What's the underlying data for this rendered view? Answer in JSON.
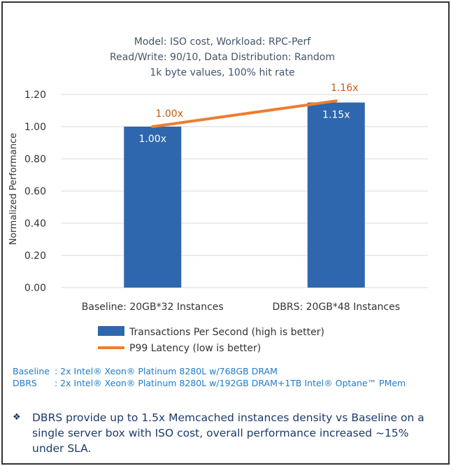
{
  "chart_data": {
    "type": "bar",
    "title_lines": [
      "Model: ISO cost, Workload: RPC-Perf",
      "Read/Write: 90/10, Data Distribution: Random",
      "1k byte values, 100% hit rate"
    ],
    "ylabel": "Normalized Performance",
    "xlabel": "",
    "ylim": [
      0,
      1.2
    ],
    "yticks": [
      "0.00",
      "0.20",
      "0.40",
      "0.60",
      "0.80",
      "1.00",
      "1.20"
    ],
    "grid": true,
    "categories": [
      "Baseline: 20GB*32 Instances",
      "DBRS: 20GB*48 Instances"
    ],
    "series": [
      {
        "name": "Transactions Per Second (high is better)",
        "type": "bar",
        "color": "#2e67ad",
        "values": [
          1.0,
          1.15
        ],
        "labels": [
          "1.00x",
          "1.15x"
        ]
      },
      {
        "name": "P99 Latency (low is better)",
        "type": "line",
        "color": "#ed7d31",
        "values": [
          1.0,
          1.16
        ],
        "labels": [
          "1.00x",
          "1.16x"
        ]
      }
    ],
    "legend_position": "bottom"
  },
  "notes": [
    {
      "label": "Baseline",
      "text": ": 2x Intel® Xeon® Platinum 8280L w/768GB DRAM"
    },
    {
      "label": "DBRS",
      "text": ": 2x Intel® Xeon® Platinum 8280L w/192GB DRAM+1TB Intel® Optane™ PMem"
    }
  ],
  "bullet": {
    "icon": "diamond-bullet-icon",
    "symbol": "❖",
    "text": "DBRS provide up to 1.5x Memcached instances density vs Baseline on a single server box with ISO cost, overall performance increased ~15% under SLA."
  }
}
